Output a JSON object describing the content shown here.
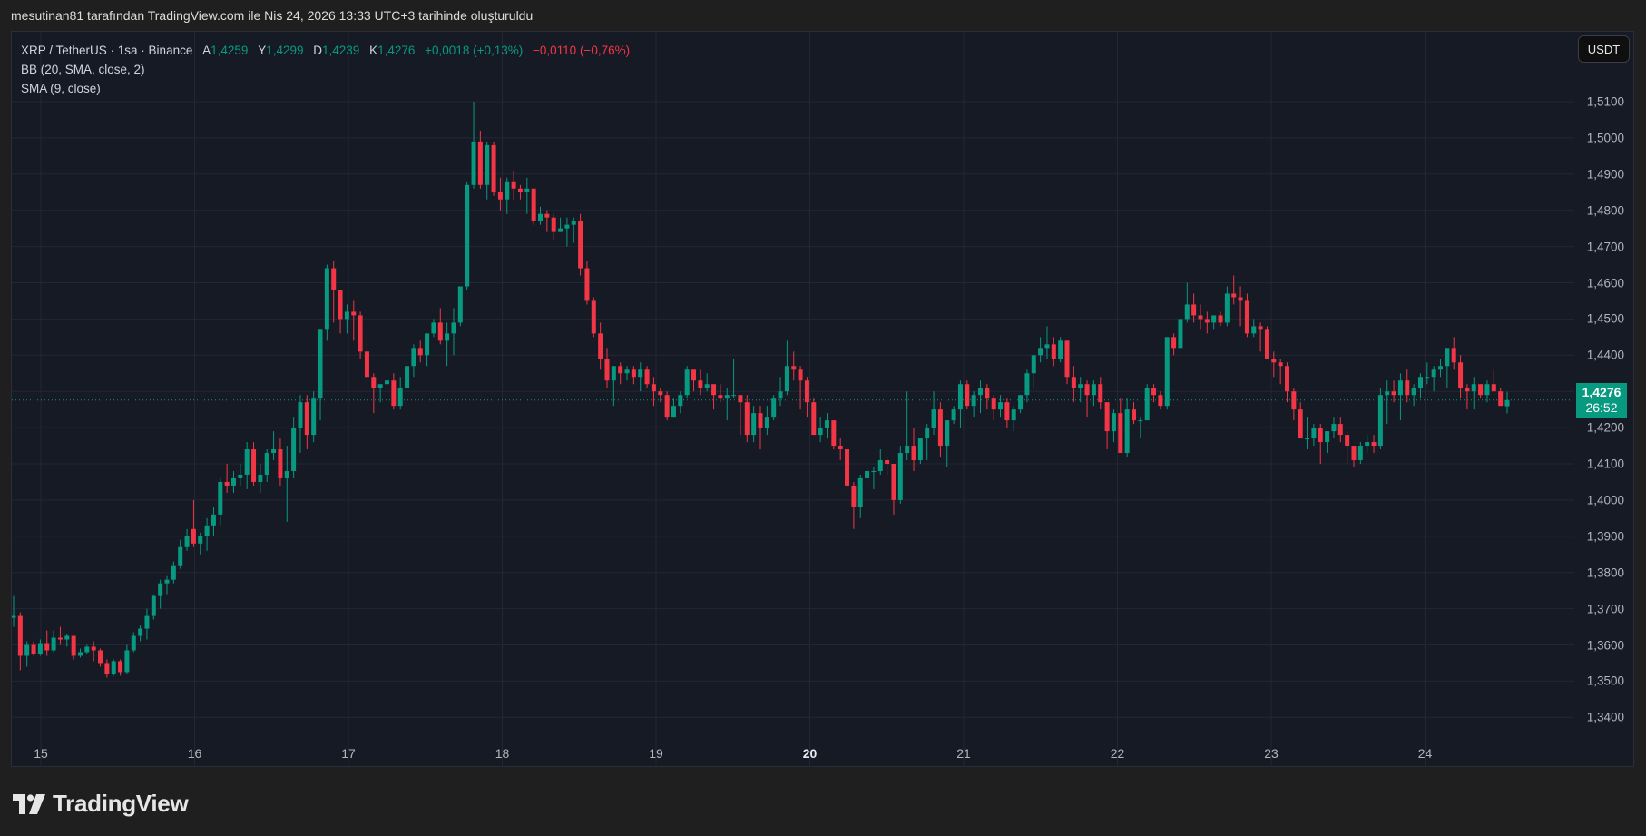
{
  "caption": "mesutinan81 tarafından TradingView.com ile Nis 24, 2026 13:33 UTC+3 tarihinde oluşturuldu",
  "legend": {
    "symbol": "XRP / TetherUS · 1sa · Binance",
    "open_label": "A",
    "open": "1,4259",
    "high_label": "Y",
    "high": "1,4299",
    "low_label": "D",
    "low": "1,4239",
    "close_label": "K",
    "close": "1,4276",
    "change": "+0,0018 (+0,13%)",
    "change2": "−0,0110 (−0,76%)",
    "indicator1": "BB (20, SMA, close, 2)",
    "indicator2": "SMA (9, close)"
  },
  "currency_button": "USDT",
  "last_price": {
    "value": "1,4276",
    "countdown": "26:52",
    "color": "#089981"
  },
  "footer_logo": "TradingView",
  "colors": {
    "up": "#089981",
    "down": "#f23645",
    "background": "#161a25",
    "grid": "#232734"
  },
  "chart_data": {
    "type": "candlestick",
    "title": "XRP / TetherUS · 1sa · Binance",
    "xlabel": "",
    "ylabel": "USDT",
    "x_ticks": [
      "15",
      "16",
      "17",
      "18",
      "19",
      "20",
      "21",
      "22",
      "23",
      "24"
    ],
    "x_tick_bold": [
      "20"
    ],
    "y_ticks": [
      "1,5100",
      "1,5000",
      "1,4900",
      "1,4800",
      "1,4700",
      "1,4600",
      "1,4500",
      "1,4400",
      "1,4300",
      "1,4200",
      "1,4100",
      "1,4000",
      "1,3900",
      "1,3800",
      "1,3700",
      "1,3600",
      "1,3500",
      "1,3400"
    ],
    "ylim": [
      1.3365,
      1.5135
    ],
    "grid": true,
    "last_close": 1.4276,
    "candles": [
      [
        1.3675,
        1.3735,
        1.365,
        1.368
      ],
      [
        1.368,
        1.369,
        1.353,
        1.357
      ],
      [
        1.357,
        1.361,
        1.354,
        1.36
      ],
      [
        1.36,
        1.361,
        1.357,
        1.3575
      ],
      [
        1.3575,
        1.3615,
        1.357,
        1.3605
      ],
      [
        1.3605,
        1.364,
        1.357,
        1.3585
      ],
      [
        1.3585,
        1.364,
        1.358,
        1.362
      ],
      [
        1.362,
        1.365,
        1.36,
        1.3615
      ],
      [
        1.3615,
        1.363,
        1.3595,
        1.3625
      ],
      [
        1.3625,
        1.362,
        1.356,
        1.357
      ],
      [
        1.357,
        1.359,
        1.3565,
        1.358
      ],
      [
        1.358,
        1.36,
        1.3575,
        1.3595
      ],
      [
        1.3595,
        1.361,
        1.3555,
        1.3585
      ],
      [
        1.3585,
        1.359,
        1.354,
        1.355
      ],
      [
        1.355,
        1.356,
        1.351,
        1.352
      ],
      [
        1.352,
        1.356,
        1.3515,
        1.3555
      ],
      [
        1.3555,
        1.356,
        1.3515,
        1.3525
      ],
      [
        1.3525,
        1.36,
        1.352,
        1.3585
      ],
      [
        1.3585,
        1.3635,
        1.358,
        1.3625
      ],
      [
        1.3625,
        1.3655,
        1.361,
        1.3645
      ],
      [
        1.3645,
        1.37,
        1.3615,
        1.368
      ],
      [
        1.368,
        1.374,
        1.367,
        1.3735
      ],
      [
        1.3735,
        1.378,
        1.37,
        1.377
      ],
      [
        1.377,
        1.379,
        1.374,
        1.378
      ],
      [
        1.378,
        1.383,
        1.377,
        1.382
      ],
      [
        1.382,
        1.389,
        1.381,
        1.387
      ],
      [
        1.387,
        1.392,
        1.386,
        1.39
      ],
      [
        1.392,
        1.4,
        1.387,
        1.388
      ],
      [
        1.388,
        1.391,
        1.385,
        1.39
      ],
      [
        1.39,
        1.395,
        1.386,
        1.393
      ],
      [
        1.393,
        1.398,
        1.39,
        1.396
      ],
      [
        1.396,
        1.406,
        1.393,
        1.405
      ],
      [
        1.405,
        1.41,
        1.402,
        1.404
      ],
      [
        1.404,
        1.408,
        1.402,
        1.406
      ],
      [
        1.406,
        1.41,
        1.404,
        1.407
      ],
      [
        1.407,
        1.416,
        1.403,
        1.414
      ],
      [
        1.414,
        1.416,
        1.404,
        1.405
      ],
      [
        1.405,
        1.41,
        1.402,
        1.407
      ],
      [
        1.407,
        1.414,
        1.405,
        1.413
      ],
      [
        1.413,
        1.419,
        1.411,
        1.414
      ],
      [
        1.414,
        1.417,
        1.404,
        1.406
      ],
      [
        1.406,
        1.415,
        1.394,
        1.408
      ],
      [
        1.408,
        1.423,
        1.406,
        1.42
      ],
      [
        1.42,
        1.429,
        1.413,
        1.427
      ],
      [
        1.427,
        1.429,
        1.414,
        1.418
      ],
      [
        1.418,
        1.43,
        1.416,
        1.428
      ],
      [
        1.428,
        1.442,
        1.422,
        1.447
      ],
      [
        1.447,
        1.465,
        1.444,
        1.464
      ],
      [
        1.464,
        1.466,
        1.449,
        1.458
      ],
      [
        1.458,
        1.457,
        1.446,
        1.45
      ],
      [
        1.45,
        1.454,
        1.446,
        1.452
      ],
      [
        1.452,
        1.455,
        1.444,
        1.451
      ],
      [
        1.451,
        1.452,
        1.439,
        1.441
      ],
      [
        1.441,
        1.446,
        1.431,
        1.434
      ],
      [
        1.434,
        1.435,
        1.424,
        1.431
      ],
      [
        1.431,
        1.432,
        1.427,
        1.432
      ],
      [
        1.432,
        1.433,
        1.426,
        1.433
      ],
      [
        1.433,
        1.435,
        1.425,
        1.426
      ],
      [
        1.426,
        1.434,
        1.425,
        1.431
      ],
      [
        1.431,
        1.437,
        1.43,
        1.437
      ],
      [
        1.437,
        1.443,
        1.434,
        1.442
      ],
      [
        1.442,
        1.444,
        1.438,
        1.44
      ],
      [
        1.44,
        1.446,
        1.437,
        1.446
      ],
      [
        1.446,
        1.45,
        1.445,
        1.449
      ],
      [
        1.449,
        1.453,
        1.443,
        1.444
      ],
      [
        1.444,
        1.449,
        1.437,
        1.446
      ],
      [
        1.446,
        1.453,
        1.44,
        1.449
      ],
      [
        1.449,
        1.459,
        1.448,
        1.459
      ],
      [
        1.459,
        1.488,
        1.458,
        1.487
      ],
      [
        1.487,
        1.51,
        1.486,
        1.499
      ],
      [
        1.499,
        1.502,
        1.486,
        1.487
      ],
      [
        1.487,
        1.499,
        1.483,
        1.498
      ],
      [
        1.498,
        1.499,
        1.484,
        1.485
      ],
      [
        1.485,
        1.489,
        1.48,
        1.483
      ],
      [
        1.483,
        1.489,
        1.479,
        1.488
      ],
      [
        1.488,
        1.491,
        1.483,
        1.486
      ],
      [
        1.486,
        1.487,
        1.483,
        1.485
      ],
      [
        1.485,
        1.489,
        1.479,
        1.486
      ],
      [
        1.486,
        1.486,
        1.476,
        1.477
      ],
      [
        1.477,
        1.481,
        1.476,
        1.479
      ],
      [
        1.479,
        1.48,
        1.474,
        1.478
      ],
      [
        1.478,
        1.479,
        1.472,
        1.474
      ],
      [
        1.474,
        1.478,
        1.474,
        1.475
      ],
      [
        1.475,
        1.478,
        1.47,
        1.476
      ],
      [
        1.476,
        1.478,
        1.471,
        1.477
      ],
      [
        1.477,
        1.479,
        1.462,
        1.464
      ],
      [
        1.464,
        1.466,
        1.454,
        1.455
      ],
      [
        1.455,
        1.456,
        1.445,
        1.446
      ],
      [
        1.446,
        1.449,
        1.436,
        1.439
      ],
      [
        1.439,
        1.442,
        1.431,
        1.433
      ],
      [
        1.433,
        1.437,
        1.426,
        1.437
      ],
      [
        1.437,
        1.438,
        1.432,
        1.435
      ],
      [
        1.435,
        1.437,
        1.433,
        1.436
      ],
      [
        1.436,
        1.437,
        1.432,
        1.434
      ],
      [
        1.434,
        1.438,
        1.43,
        1.436
      ],
      [
        1.436,
        1.437,
        1.431,
        1.432
      ],
      [
        1.432,
        1.434,
        1.426,
        1.43
      ],
      [
        1.43,
        1.431,
        1.427,
        1.429
      ],
      [
        1.429,
        1.43,
        1.422,
        1.423
      ],
      [
        1.423,
        1.428,
        1.424,
        1.426
      ],
      [
        1.426,
        1.43,
        1.424,
        1.429
      ],
      [
        1.429,
        1.437,
        1.428,
        1.436
      ],
      [
        1.436,
        1.435,
        1.43,
        1.433
      ],
      [
        1.433,
        1.436,
        1.429,
        1.431
      ],
      [
        1.431,
        1.435,
        1.43,
        1.432
      ],
      [
        1.432,
        1.432,
        1.425,
        1.429
      ],
      [
        1.429,
        1.432,
        1.427,
        1.428
      ],
      [
        1.428,
        1.431,
        1.422,
        1.429
      ],
      [
        1.429,
        1.439,
        1.428,
        1.429
      ],
      [
        1.429,
        1.429,
        1.418,
        1.427
      ],
      [
        1.427,
        1.429,
        1.416,
        1.418
      ],
      [
        1.418,
        1.426,
        1.416,
        1.424
      ],
      [
        1.424,
        1.426,
        1.414,
        1.42
      ],
      [
        1.42,
        1.426,
        1.418,
        1.423
      ],
      [
        1.423,
        1.429,
        1.422,
        1.428
      ],
      [
        1.428,
        1.434,
        1.426,
        1.43
      ],
      [
        1.43,
        1.444,
        1.429,
        1.437
      ],
      [
        1.437,
        1.441,
        1.433,
        1.436
      ],
      [
        1.436,
        1.437,
        1.425,
        1.433
      ],
      [
        1.433,
        1.434,
        1.423,
        1.427
      ],
      [
        1.427,
        1.428,
        1.418,
        1.418
      ],
      [
        1.418,
        1.423,
        1.416,
        1.42
      ],
      [
        1.42,
        1.424,
        1.417,
        1.422
      ],
      [
        1.422,
        1.422,
        1.414,
        1.415
      ],
      [
        1.415,
        1.417,
        1.411,
        1.414
      ],
      [
        1.414,
        1.413,
        1.402,
        1.404
      ],
      [
        1.404,
        1.405,
        1.392,
        1.398
      ],
      [
        1.398,
        1.407,
        1.395,
        1.406
      ],
      [
        1.406,
        1.409,
        1.404,
        1.408
      ],
      [
        1.408,
        1.409,
        1.403,
        1.408
      ],
      [
        1.408,
        1.414,
        1.407,
        1.411
      ],
      [
        1.411,
        1.412,
        1.407,
        1.41
      ],
      [
        1.41,
        1.41,
        1.396,
        1.4
      ],
      [
        1.4,
        1.415,
        1.399,
        1.413
      ],
      [
        1.413,
        1.43,
        1.411,
        1.415
      ],
      [
        1.415,
        1.42,
        1.408,
        1.411
      ],
      [
        1.411,
        1.416,
        1.41,
        1.417
      ],
      [
        1.417,
        1.421,
        1.411,
        1.42
      ],
      [
        1.42,
        1.43,
        1.418,
        1.425
      ],
      [
        1.425,
        1.427,
        1.412,
        1.415
      ],
      [
        1.415,
        1.421,
        1.409,
        1.422
      ],
      [
        1.422,
        1.426,
        1.421,
        1.425
      ],
      [
        1.425,
        1.433,
        1.42,
        1.432
      ],
      [
        1.432,
        1.433,
        1.425,
        1.426
      ],
      [
        1.426,
        1.43,
        1.423,
        1.429
      ],
      [
        1.429,
        1.433,
        1.424,
        1.431
      ],
      [
        1.431,
        1.432,
        1.425,
        1.428
      ],
      [
        1.428,
        1.429,
        1.422,
        1.425
      ],
      [
        1.425,
        1.429,
        1.423,
        1.427
      ],
      [
        1.427,
        1.428,
        1.42,
        1.422
      ],
      [
        1.422,
        1.426,
        1.419,
        1.425
      ],
      [
        1.425,
        1.429,
        1.424,
        1.429
      ],
      [
        1.429,
        1.436,
        1.427,
        1.435
      ],
      [
        1.435,
        1.44,
        1.431,
        1.44
      ],
      [
        1.44,
        1.445,
        1.438,
        1.442
      ],
      [
        1.442,
        1.448,
        1.439,
        1.443
      ],
      [
        1.443,
        1.445,
        1.437,
        1.439
      ],
      [
        1.439,
        1.445,
        1.438,
        1.444
      ],
      [
        1.444,
        1.444,
        1.432,
        1.434
      ],
      [
        1.434,
        1.437,
        1.427,
        1.431
      ],
      [
        1.431,
        1.434,
        1.427,
        1.432
      ],
      [
        1.432,
        1.433,
        1.423,
        1.429
      ],
      [
        1.429,
        1.433,
        1.426,
        1.432
      ],
      [
        1.432,
        1.434,
        1.425,
        1.427
      ],
      [
        1.427,
        1.426,
        1.414,
        1.419
      ],
      [
        1.419,
        1.425,
        1.416,
        1.424
      ],
      [
        1.424,
        1.428,
        1.414,
        1.413
      ],
      [
        1.413,
        1.428,
        1.412,
        1.425
      ],
      [
        1.425,
        1.427,
        1.421,
        1.422
      ],
      [
        1.422,
        1.423,
        1.417,
        1.422
      ],
      [
        1.422,
        1.432,
        1.422,
        1.431
      ],
      [
        1.431,
        1.432,
        1.427,
        1.429
      ],
      [
        1.429,
        1.43,
        1.425,
        1.426
      ],
      [
        1.426,
        1.445,
        1.425,
        1.445
      ],
      [
        1.445,
        1.446,
        1.44,
        1.442
      ],
      [
        1.442,
        1.449,
        1.442,
        1.45
      ],
      [
        1.45,
        1.46,
        1.449,
        1.454
      ],
      [
        1.454,
        1.457,
        1.449,
        1.451
      ],
      [
        1.451,
        1.454,
        1.447,
        1.45
      ],
      [
        1.45,
        1.452,
        1.446,
        1.449
      ],
      [
        1.449,
        1.451,
        1.447,
        1.451
      ],
      [
        1.451,
        1.452,
        1.448,
        1.449
      ],
      [
        1.449,
        1.459,
        1.448,
        1.457
      ],
      [
        1.457,
        1.462,
        1.454,
        1.456
      ],
      [
        1.456,
        1.459,
        1.448,
        1.455
      ],
      [
        1.455,
        1.457,
        1.445,
        1.446
      ],
      [
        1.446,
        1.45,
        1.445,
        1.448
      ],
      [
        1.448,
        1.449,
        1.441,
        1.447
      ],
      [
        1.447,
        1.448,
        1.439,
        1.439
      ],
      [
        1.439,
        1.441,
        1.434,
        1.438
      ],
      [
        1.438,
        1.439,
        1.432,
        1.437
      ],
      [
        1.437,
        1.438,
        1.427,
        1.43
      ],
      [
        1.43,
        1.431,
        1.422,
        1.425
      ],
      [
        1.425,
        1.427,
        1.418,
        1.417
      ],
      [
        1.417,
        1.423,
        1.414,
        1.417
      ],
      [
        1.417,
        1.421,
        1.415,
        1.42
      ],
      [
        1.42,
        1.421,
        1.41,
        1.416
      ],
      [
        1.416,
        1.418,
        1.413,
        1.419
      ],
      [
        1.419,
        1.423,
        1.417,
        1.421
      ],
      [
        1.421,
        1.423,
        1.416,
        1.418
      ],
      [
        1.418,
        1.419,
        1.41,
        1.415
      ],
      [
        1.415,
        1.413,
        1.409,
        1.411
      ],
      [
        1.411,
        1.416,
        1.41,
        1.415
      ],
      [
        1.415,
        1.418,
        1.413,
        1.416
      ],
      [
        1.416,
        1.418,
        1.413,
        1.415
      ],
      [
        1.415,
        1.431,
        1.414,
        1.429
      ],
      [
        1.429,
        1.433,
        1.421,
        1.43
      ],
      [
        1.43,
        1.433,
        1.427,
        1.429
      ],
      [
        1.429,
        1.435,
        1.422,
        1.433
      ],
      [
        1.433,
        1.436,
        1.427,
        1.429
      ],
      [
        1.429,
        1.432,
        1.426,
        1.431
      ],
      [
        1.431,
        1.435,
        1.428,
        1.434
      ],
      [
        1.434,
        1.438,
        1.432,
        1.434
      ],
      [
        1.434,
        1.437,
        1.43,
        1.436
      ],
      [
        1.436,
        1.439,
        1.434,
        1.437
      ],
      [
        1.437,
        1.438,
        1.431,
        1.442
      ],
      [
        1.442,
        1.445,
        1.436,
        1.438
      ],
      [
        1.438,
        1.44,
        1.428,
        1.431
      ],
      [
        1.431,
        1.432,
        1.425,
        1.43
      ],
      [
        1.43,
        1.434,
        1.425,
        1.432
      ],
      [
        1.432,
        1.432,
        1.428,
        1.429
      ],
      [
        1.429,
        1.433,
        1.427,
        1.432
      ],
      [
        1.432,
        1.436,
        1.43,
        1.43
      ],
      [
        1.43,
        1.431,
        1.426,
        1.426
      ],
      [
        1.4259,
        1.4299,
        1.4239,
        1.4276
      ]
    ]
  }
}
